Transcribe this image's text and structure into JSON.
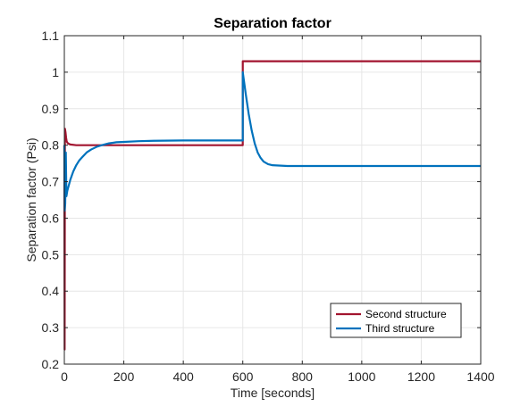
{
  "chart_data": {
    "type": "line",
    "title": "Separation factor",
    "xlabel": "Time [seconds]",
    "ylabel": "Separation factor (Psi)",
    "xlim": [
      0,
      1400
    ],
    "ylim": [
      0.2,
      1.1
    ],
    "xticks": [
      0,
      200,
      400,
      600,
      800,
      1000,
      1200,
      1400
    ],
    "yticks": [
      0.2,
      0.3,
      0.4,
      0.5,
      0.6,
      0.7,
      0.8,
      0.9,
      1,
      1.1
    ],
    "grid": true,
    "legend_position": "bottom-right",
    "series": [
      {
        "name": "Second structure",
        "color": "#A2142F",
        "points": [
          [
            0,
            0.8
          ],
          [
            1,
            0.24
          ],
          [
            2,
            0.845
          ],
          [
            4,
            0.835
          ],
          [
            6,
            0.82
          ],
          [
            8,
            0.81
          ],
          [
            12,
            0.805
          ],
          [
            20,
            0.802
          ],
          [
            40,
            0.8
          ],
          [
            100,
            0.8
          ],
          [
            200,
            0.8
          ],
          [
            400,
            0.8
          ],
          [
            599.9,
            0.8
          ],
          [
            600,
            1.03
          ],
          [
            800,
            1.03
          ],
          [
            1000,
            1.03
          ],
          [
            1200,
            1.03
          ],
          [
            1400,
            1.03
          ]
        ]
      },
      {
        "name": "Third structure",
        "color": "#0072BD",
        "points": [
          [
            0,
            0.8
          ],
          [
            1,
            0.62
          ],
          [
            3,
            0.64
          ],
          [
            5,
            0.78
          ],
          [
            7,
            0.66
          ],
          [
            10,
            0.675
          ],
          [
            20,
            0.705
          ],
          [
            30,
            0.728
          ],
          [
            40,
            0.745
          ],
          [
            50,
            0.758
          ],
          [
            60,
            0.767
          ],
          [
            75,
            0.78
          ],
          [
            90,
            0.788
          ],
          [
            110,
            0.796
          ],
          [
            130,
            0.801
          ],
          [
            150,
            0.805
          ],
          [
            175,
            0.808
          ],
          [
            200,
            0.809
          ],
          [
            250,
            0.811
          ],
          [
            300,
            0.812
          ],
          [
            400,
            0.813
          ],
          [
            599.9,
            0.813
          ],
          [
            600,
            1.0
          ],
          [
            610,
            0.94
          ],
          [
            620,
            0.885
          ],
          [
            630,
            0.84
          ],
          [
            640,
            0.805
          ],
          [
            650,
            0.78
          ],
          [
            660,
            0.765
          ],
          [
            670,
            0.755
          ],
          [
            685,
            0.748
          ],
          [
            700,
            0.745
          ],
          [
            750,
            0.743
          ],
          [
            800,
            0.743
          ],
          [
            1000,
            0.743
          ],
          [
            1200,
            0.743
          ],
          [
            1400,
            0.743
          ]
        ]
      }
    ]
  }
}
